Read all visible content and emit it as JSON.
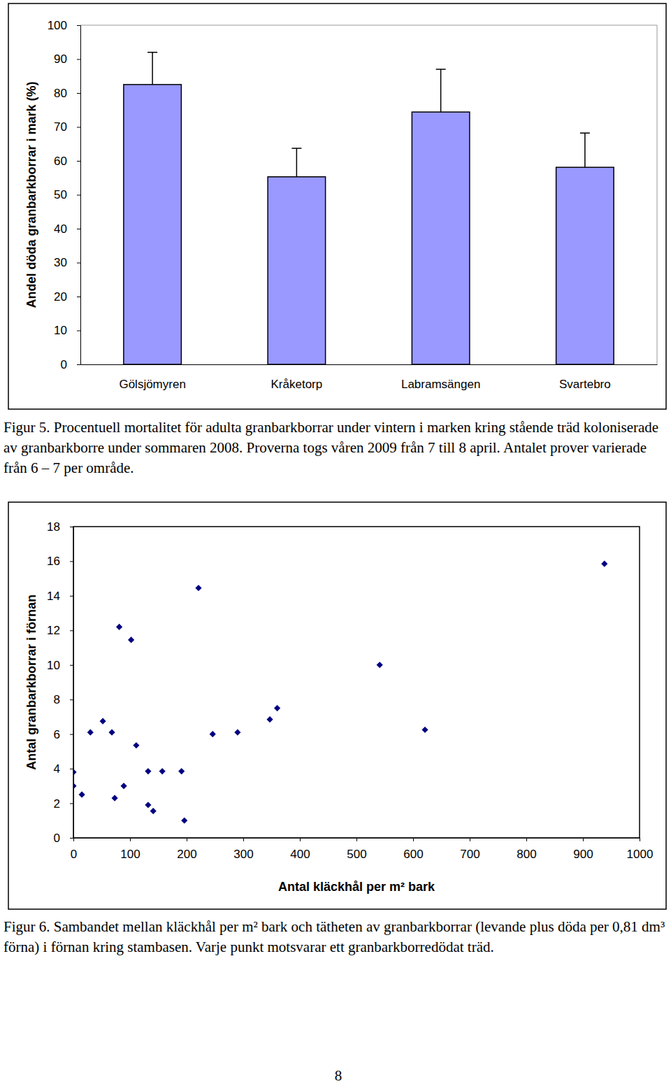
{
  "chart_data": [
    {
      "type": "bar",
      "categories": [
        "Gölsjömyren",
        "Kråketorp",
        "Labramsängen",
        "Svartebro"
      ],
      "values": [
        82.5,
        55.3,
        74.4,
        58.1
      ],
      "errors": [
        9.5,
        8.4,
        12.6,
        10.1
      ],
      "color": "#9999ff",
      "ylabel": "Andel döda granbarkborrar i mark (%)",
      "ylim": [
        0,
        100
      ],
      "yticks": [
        0,
        10,
        20,
        30,
        40,
        50,
        60,
        70,
        80,
        90,
        100
      ],
      "caption": "Figur 5. Procentuell mortalitet för adulta granbarkborrar under vintern i marken kring stående träd koloniserade av granbarkborre under sommaren 2008. Proverna togs våren 2009 från 7 till 8 april. Antalet prover varierade från 6 – 7 per område."
    },
    {
      "type": "scatter",
      "x": [
        0,
        0,
        15,
        30,
        52,
        68,
        81,
        73,
        89,
        102,
        111,
        132,
        132,
        141,
        157,
        191,
        196,
        221,
        246,
        290,
        347,
        360,
        541,
        621,
        938
      ],
      "values": [
        3.8,
        3.0,
        2.5,
        6.1,
        6.75,
        6.1,
        12.2,
        2.3,
        3.0,
        11.45,
        5.35,
        3.85,
        1.9,
        1.55,
        3.85,
        3.85,
        1.0,
        14.45,
        6.0,
        6.1,
        6.85,
        7.5,
        10.0,
        6.25,
        15.85
      ],
      "color": "#000080",
      "marker": "diamond",
      "xlabel": "Antal kläckhål per m² bark",
      "ylabel": "Antal granbarkborrar i förnan",
      "xlim": [
        0,
        1000
      ],
      "xticks": [
        0,
        100,
        200,
        300,
        400,
        500,
        600,
        700,
        800,
        900,
        1000
      ],
      "ylim": [
        0,
        18
      ],
      "yticks": [
        0,
        2,
        4,
        6,
        8,
        10,
        12,
        14,
        16,
        18
      ],
      "caption": "Figur 6. Sambandet mellan kläckhål per m² bark och tätheten av granbarkborrar (levande plus döda per 0,81 dm³ förna) i förnan kring stambasen. Varje punkt motsvarar ett granbarkborredödat träd."
    }
  ],
  "page_number": 8
}
